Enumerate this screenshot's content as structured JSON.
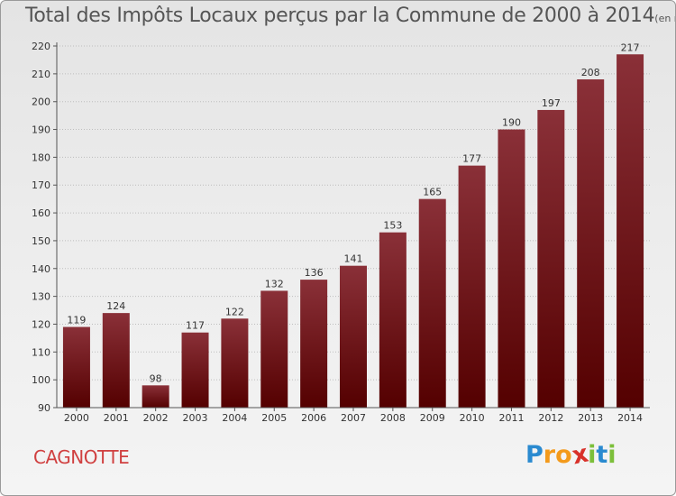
{
  "chart_data": {
    "type": "bar",
    "title": "Total des Impôts Locaux perçus par la Commune de 2000 à 2014",
    "unit_note": "(en milliers d'€)",
    "categories": [
      "2000",
      "2001",
      "2002",
      "2003",
      "2004",
      "2005",
      "2006",
      "2007",
      "2008",
      "2009",
      "2010",
      "2011",
      "2012",
      "2013",
      "2014"
    ],
    "values": [
      119,
      124,
      98,
      117,
      122,
      132,
      136,
      141,
      153,
      165,
      177,
      190,
      197,
      208,
      217
    ],
    "ylim": [
      90,
      220
    ],
    "yticks": [
      90,
      100,
      110,
      120,
      130,
      140,
      150,
      160,
      170,
      180,
      190,
      200,
      210,
      220
    ],
    "grid": true,
    "bar_color_top": "#8a3038",
    "bar_color_bottom": "#540000",
    "xlabel": "",
    "ylabel": ""
  },
  "commune": "CAGNOTTE",
  "logo": {
    "letters": [
      "P",
      "r",
      "o",
      "x",
      "i",
      "t",
      "i"
    ],
    "colors": [
      "#2a8ad0",
      "#f39a1b",
      "#f39a1b",
      "#d8312a",
      "#7cbf3a",
      "#2a8ad0",
      "#7cbf3a"
    ]
  }
}
